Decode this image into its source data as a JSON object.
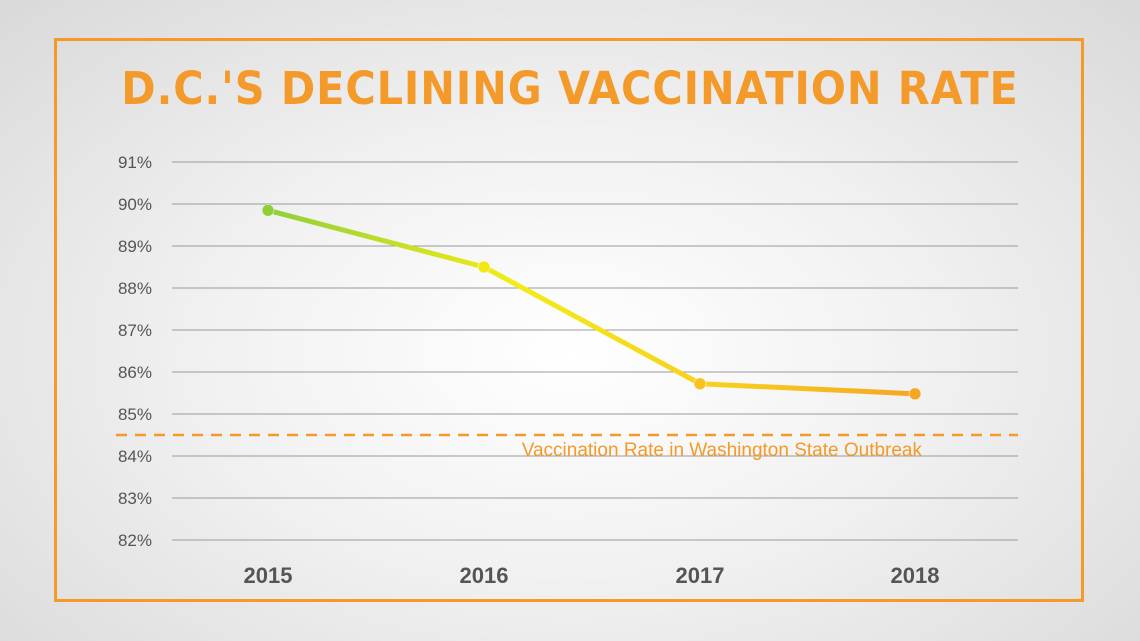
{
  "chart_data": {
    "type": "line",
    "title": "D.C.'S DECLINING VACCINATION RATE",
    "xlabel": "",
    "ylabel": "",
    "categories": [
      "2015",
      "2016",
      "2017",
      "2018"
    ],
    "series": [
      {
        "values": [
          89.85,
          88.5,
          85.72,
          85.48
        ]
      }
    ],
    "ylim": [
      82,
      91
    ],
    "yticks": [
      "82%",
      "83%",
      "84%",
      "85%",
      "86%",
      "87%",
      "88%",
      "89%",
      "90%",
      "91%"
    ],
    "reference_line": {
      "value": 84.5,
      "label": "Vaccination Rate in Washington State Outbreak"
    },
    "grid": true,
    "colors": {
      "accent": "#f39a2a",
      "line_start": "#8fcf3a",
      "line_mid": "#f3e814",
      "line_end": "#f5a623",
      "grid": "#9a9a9a",
      "text": "#555555"
    }
  }
}
